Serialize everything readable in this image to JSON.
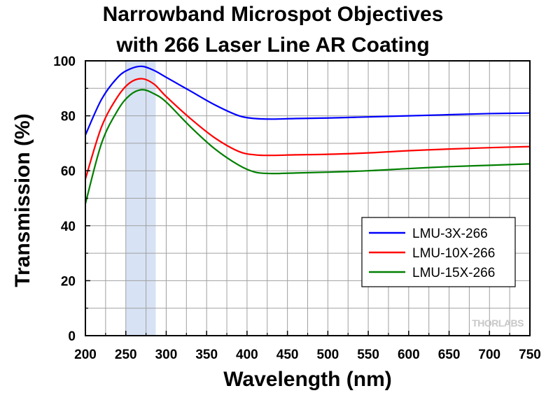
{
  "chart_data": {
    "type": "line",
    "title": [
      "Narrowband Microspot Objectives",
      "with 266 Laser Line AR Coating"
    ],
    "xlabel": "Wavelength (nm)",
    "ylabel": "Transmission (%)",
    "xlim": [
      200,
      750
    ],
    "ylim": [
      0,
      100
    ],
    "xticks": [
      200,
      250,
      300,
      350,
      400,
      450,
      500,
      550,
      600,
      650,
      700,
      750
    ],
    "yticks": [
      0,
      20,
      40,
      60,
      80,
      100
    ],
    "grid": true,
    "highlight_band": [
      250,
      287
    ],
    "legend_position": "lower-right",
    "watermark": "THORLABS",
    "series": [
      {
        "name": "LMU-3X-266",
        "color": "#0000ff",
        "x": [
          200,
          220,
          240,
          255,
          270,
          285,
          300,
          330,
          360,
          390,
          410,
          430,
          460,
          500,
          550,
          600,
          650,
          700,
          750
        ],
        "y": [
          73,
          86,
          94,
          97,
          98,
          96.5,
          94,
          89,
          84,
          80,
          79,
          78.8,
          79,
          79.2,
          79.6,
          80,
          80.4,
          80.8,
          81
        ]
      },
      {
        "name": "LMU-10X-266",
        "color": "#ff0000",
        "x": [
          200,
          220,
          240,
          255,
          270,
          285,
          300,
          330,
          360,
          390,
          410,
          430,
          460,
          500,
          550,
          600,
          650,
          700,
          750
        ],
        "y": [
          57,
          76,
          87,
          92,
          93.5,
          91.5,
          87,
          79,
          72,
          67,
          65.8,
          65.6,
          65.8,
          66,
          66.5,
          67.3,
          67.9,
          68.4,
          68.8
        ]
      },
      {
        "name": "LMU-15X-266",
        "color": "#008000",
        "x": [
          200,
          220,
          240,
          255,
          270,
          285,
          300,
          330,
          360,
          390,
          410,
          430,
          460,
          500,
          550,
          600,
          650,
          700,
          750
        ],
        "y": [
          48,
          70,
          82,
          87.5,
          89.5,
          88,
          85,
          76,
          68,
          62,
          59.5,
          59,
          59.2,
          59.5,
          60,
          60.8,
          61.5,
          62,
          62.5
        ]
      }
    ]
  }
}
